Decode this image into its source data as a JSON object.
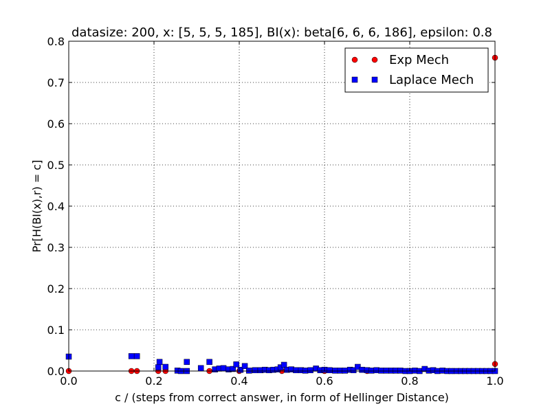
{
  "chart_data": {
    "type": "scatter",
    "title": "datasize: 200, x: [5, 5, 5, 185], BI(x): beta[6, 6, 6, 186], epsilon: 0.8",
    "xlabel": "c / (steps from correct answer, in form of Hellinger Distance)",
    "ylabel": "Pr[H(BI(x),r) = c]",
    "xlim": [
      0.0,
      1.0
    ],
    "ylim": [
      0.0,
      0.8
    ],
    "xticks": [
      "0.0",
      "0.2",
      "0.4",
      "0.6",
      "0.8",
      "1.0"
    ],
    "yticks": [
      "0.0",
      "0.1",
      "0.2",
      "0.3",
      "0.4",
      "0.5",
      "0.6",
      "0.7",
      "0.8"
    ],
    "grid": true,
    "legend_position": "top-right",
    "series": [
      {
        "name": "Exp Mech",
        "marker": "circle",
        "color": "#ff0000",
        "points": [
          [
            0.0,
            0.0
          ],
          [
            0.147,
            0.0
          ],
          [
            0.16,
            0.0
          ],
          [
            0.21,
            0.0
          ],
          [
            0.227,
            0.0
          ],
          [
            0.33,
            0.0
          ],
          [
            0.4,
            0.0
          ],
          [
            0.5,
            0.0
          ],
          [
            0.6,
            0.0
          ],
          [
            0.7,
            0.0
          ],
          [
            0.8,
            0.0
          ],
          [
            0.9,
            0.0
          ],
          [
            1.0,
            0.017
          ],
          [
            1.0,
            0.76
          ]
        ]
      },
      {
        "name": "Laplace Mech",
        "marker": "square",
        "color": "#0000ff",
        "points": [
          [
            0.0,
            0.035
          ],
          [
            0.147,
            0.036
          ],
          [
            0.16,
            0.036
          ],
          [
            0.21,
            0.009
          ],
          [
            0.213,
            0.022
          ],
          [
            0.227,
            0.01
          ],
          [
            0.255,
            0.001
          ],
          [
            0.263,
            0.0
          ],
          [
            0.277,
            0.022
          ],
          [
            0.277,
            0.0
          ],
          [
            0.31,
            0.007
          ],
          [
            0.33,
            0.022
          ],
          [
            0.343,
            0.004
          ],
          [
            0.353,
            0.006
          ],
          [
            0.363,
            0.007
          ],
          [
            0.375,
            0.004
          ],
          [
            0.385,
            0.005
          ],
          [
            0.393,
            0.016
          ],
          [
            0.403,
            0.003
          ],
          [
            0.413,
            0.012
          ],
          [
            0.423,
            0.001
          ],
          [
            0.437,
            0.002
          ],
          [
            0.45,
            0.002
          ],
          [
            0.46,
            0.003
          ],
          [
            0.47,
            0.002
          ],
          [
            0.48,
            0.003
          ],
          [
            0.49,
            0.004
          ],
          [
            0.497,
            0.009
          ],
          [
            0.505,
            0.015
          ],
          [
            0.512,
            0.003
          ],
          [
            0.522,
            0.004
          ],
          [
            0.533,
            0.002
          ],
          [
            0.545,
            0.002
          ],
          [
            0.555,
            0.001
          ],
          [
            0.567,
            0.002
          ],
          [
            0.58,
            0.006
          ],
          [
            0.59,
            0.002
          ],
          [
            0.6,
            0.003
          ],
          [
            0.612,
            0.002
          ],
          [
            0.625,
            0.001
          ],
          [
            0.637,
            0.001
          ],
          [
            0.648,
            0.001
          ],
          [
            0.66,
            0.003
          ],
          [
            0.668,
            0.002
          ],
          [
            0.678,
            0.01
          ],
          [
            0.688,
            0.003
          ],
          [
            0.7,
            0.002
          ],
          [
            0.71,
            0.001
          ],
          [
            0.722,
            0.002
          ],
          [
            0.733,
            0.001
          ],
          [
            0.745,
            0.001
          ],
          [
            0.757,
            0.001
          ],
          [
            0.767,
            0.001
          ],
          [
            0.778,
            0.001
          ],
          [
            0.79,
            0.0
          ],
          [
            0.8,
            0.0
          ],
          [
            0.812,
            0.001
          ],
          [
            0.823,
            0.0
          ],
          [
            0.835,
            0.005
          ],
          [
            0.845,
            0.001
          ],
          [
            0.855,
            0.002
          ],
          [
            0.865,
            0.0
          ],
          [
            0.877,
            0.001
          ],
          [
            0.888,
            0.0
          ],
          [
            0.898,
            0.0
          ],
          [
            0.91,
            0.0
          ],
          [
            0.92,
            0.0
          ],
          [
            0.93,
            0.0
          ],
          [
            0.94,
            0.0
          ],
          [
            0.95,
            0.0
          ],
          [
            0.96,
            0.0
          ],
          [
            0.97,
            0.0
          ],
          [
            0.98,
            0.0
          ],
          [
            0.99,
            0.0
          ],
          [
            1.0,
            0.0
          ]
        ]
      }
    ]
  }
}
